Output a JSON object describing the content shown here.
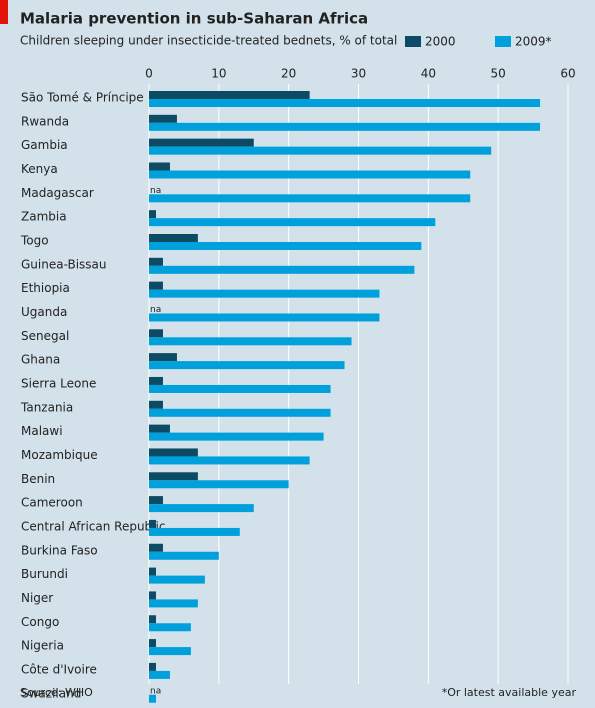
{
  "chart_data": {
    "type": "hbar",
    "title": "Malaria prevention in sub-Saharan Africa",
    "subtitle": "Children sleeping under insecticide-treated bednets, % of total",
    "source": "Source: WHO",
    "note": "*Or latest available year",
    "categories": [
      "São Tomé & Príncipe",
      "Rwanda",
      "Gambia",
      "Kenya",
      "Madagascar",
      "Zambia",
      "Togo",
      "Guinea-Bissau",
      "Ethiopia",
      "Uganda",
      "Senegal",
      "Ghana",
      "Sierra Leone",
      "Tanzania",
      "Malawi",
      "Mozambique",
      "Benin",
      "Cameroon",
      "Central African Republic",
      "Burkina Faso",
      "Burundi",
      "Niger",
      "Congo",
      "Nigeria",
      "Côte d'Ivoire",
      "Swaziland"
    ],
    "series": [
      {
        "name": "2000",
        "color": "#0d4a63",
        "values": [
          23,
          4,
          15,
          3,
          null,
          1,
          7,
          2,
          2,
          null,
          2,
          4,
          2,
          2,
          3,
          7,
          7,
          2,
          1,
          2,
          1,
          1,
          1,
          1,
          1,
          null
        ],
        "value_labels": [
          null,
          null,
          null,
          null,
          "na",
          null,
          null,
          null,
          null,
          "na",
          null,
          null,
          null,
          null,
          null,
          null,
          null,
          null,
          null,
          null,
          null,
          null,
          null,
          null,
          null,
          "na"
        ]
      },
      {
        "name": "2009*",
        "color": "#00a0dc",
        "values": [
          56,
          56,
          49,
          46,
          46,
          41,
          39,
          38,
          33,
          33,
          29,
          28,
          26,
          26,
          25,
          23,
          20,
          15,
          13,
          10,
          8,
          7,
          6,
          6,
          3,
          1
        ]
      }
    ],
    "xlim": [
      0,
      60
    ],
    "xticks": [
      0,
      10,
      20,
      30,
      40,
      50,
      60
    ],
    "grid": true
  }
}
